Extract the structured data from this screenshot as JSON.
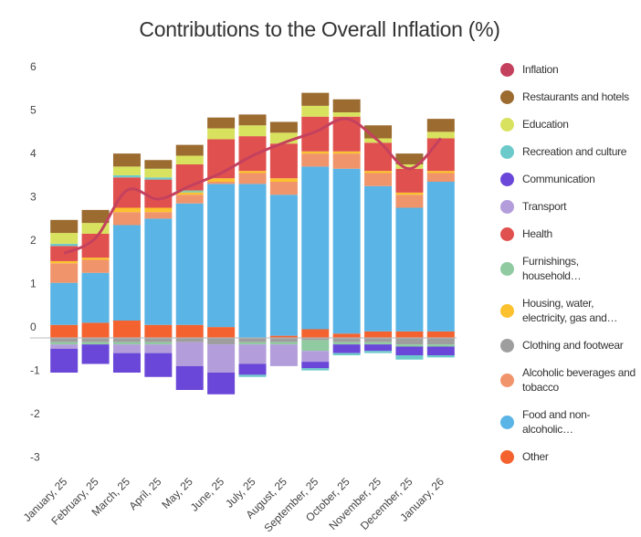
{
  "chart_data": {
    "type": "bar",
    "stacked": true,
    "title": "Contributions to the Overall Inflation (%)",
    "categories": [
      "January, 25",
      "February, 25",
      "March, 25",
      "April, 25",
      "May, 25",
      "June, 25",
      "July, 25",
      "August, 25",
      "September, 25",
      "October, 25",
      "November, 25",
      "December, 25",
      "January, 26"
    ],
    "ylim": [
      -3,
      6
    ],
    "yticks": [
      -3,
      -2,
      -1,
      0,
      1,
      2,
      3,
      4,
      5,
      6
    ],
    "grid": false,
    "legend": "right",
    "series": [
      {
        "name": "Inflation",
        "type": "line",
        "color": "#c4415e",
        "values": [
          1.95,
          2.3,
          3.4,
          3.2,
          3.5,
          3.8,
          4.2,
          4.5,
          4.75,
          5.05,
          4.55,
          3.9,
          4.6
        ]
      },
      {
        "name": "Restaurants and hotels",
        "color": "#9c6b30",
        "values": [
          0.3,
          0.3,
          0.3,
          0.2,
          0.25,
          0.25,
          0.25,
          0.25,
          0.3,
          0.3,
          0.3,
          0.25,
          0.3
        ]
      },
      {
        "name": "Education",
        "color": "#d9e25e",
        "values": [
          0.25,
          0.25,
          0.2,
          0.2,
          0.2,
          0.25,
          0.25,
          0.25,
          0.25,
          0.1,
          0.1,
          0.1,
          0.15
        ]
      },
      {
        "name": "Recreation and culture",
        "color": "#6ccacb",
        "values": [
          0.05,
          0,
          0.05,
          0.05,
          0,
          0,
          -0.05,
          0,
          -0.05,
          -0.05,
          -0.05,
          -0.1,
          -0.05
        ]
      },
      {
        "name": "Communication",
        "color": "#6a47d8",
        "values": [
          -0.55,
          -0.45,
          -0.45,
          -0.55,
          -0.55,
          -0.5,
          -0.25,
          0,
          -0.15,
          -0.2,
          -0.15,
          -0.2,
          -0.2
        ]
      },
      {
        "name": "Transport",
        "color": "#b39ddb",
        "values": [
          -0.1,
          0,
          -0.2,
          -0.2,
          -0.55,
          -0.65,
          -0.45,
          -0.5,
          -0.25,
          0,
          0,
          0,
          0
        ]
      },
      {
        "name": "Health",
        "color": "#e0504f",
        "values": [
          0.35,
          0.55,
          0.7,
          0.65,
          0.6,
          0.9,
          0.8,
          0.8,
          0.8,
          0.8,
          0.65,
          0.55,
          0.75
        ]
      },
      {
        "name": "Furnishings, household…",
        "color": "#8fcaa1",
        "values": [
          -0.05,
          -0.05,
          -0.05,
          -0.05,
          0.05,
          0,
          -0.05,
          -0.05,
          -0.25,
          -0.05,
          -0.05,
          -0.05,
          -0.05
        ]
      },
      {
        "name": "Housing, water, electricity, gas and…",
        "color": "#fbc12e",
        "values": [
          0.05,
          0.05,
          0.1,
          0.1,
          0.05,
          0.08,
          0.05,
          0.08,
          0.05,
          0.05,
          0.05,
          0.05,
          0.05
        ]
      },
      {
        "name": "Clothing and footwear",
        "color": "#9e9e9e",
        "values": [
          -0.1,
          -0.1,
          -0.1,
          -0.1,
          -0.1,
          -0.15,
          -0.1,
          -0.1,
          -0.05,
          -0.1,
          -0.1,
          -0.15,
          -0.15
        ]
      },
      {
        "name": "Alcoholic beverages and tobacco",
        "color": "#f0946b",
        "values": [
          0.45,
          0.3,
          0.3,
          0.15,
          0.2,
          0.05,
          0.25,
          0.3,
          0.3,
          0.35,
          0.3,
          0.3,
          0.2
        ]
      },
      {
        "name": "Food and non-alcoholic…",
        "color": "#5ab4e5",
        "values": [
          0.97,
          1.15,
          2.2,
          2.45,
          2.8,
          3.3,
          3.55,
          3.25,
          3.75,
          3.8,
          3.35,
          2.85,
          3.45
        ]
      },
      {
        "name": "Other",
        "color": "#f4632f",
        "values": [
          0.3,
          0.35,
          0.4,
          0.3,
          0.3,
          0.25,
          0,
          0.05,
          0.2,
          0.1,
          0.15,
          0.15,
          0.15
        ]
      }
    ]
  }
}
